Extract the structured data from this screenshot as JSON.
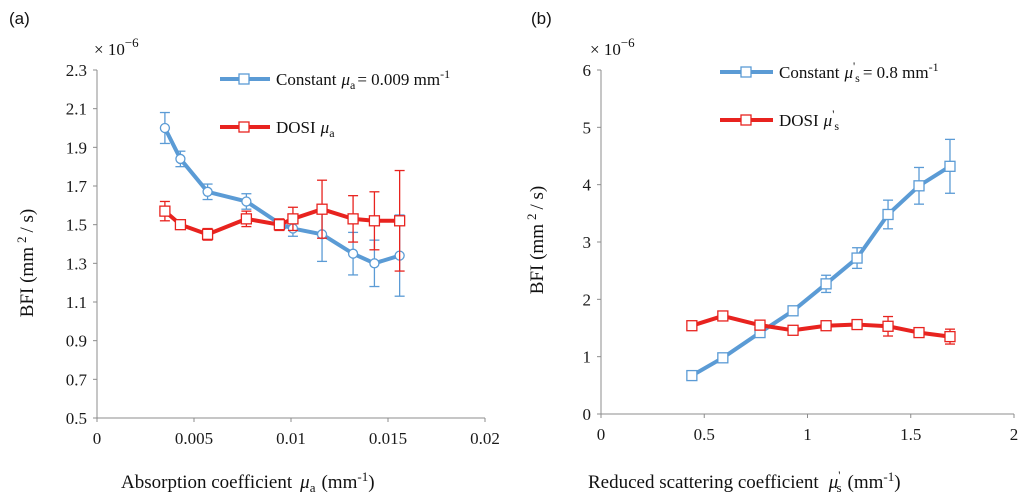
{
  "chart_data": [
    {
      "type": "line",
      "panel_label": "(a)",
      "multiplier": "× 10",
      "multiplier_exp": "−6",
      "xlabel": "Absorption coefficient",
      "xlabel_symbol": "μ",
      "xlabel_sub": "a",
      "xlabel_unit_pre": "(mm",
      "xlabel_unit_sup": "-1",
      "xlabel_unit_post": ")",
      "ylabel_pre": "BFI (mm",
      "ylabel_sup": "2",
      "ylabel_post": "/ s)",
      "xlim": [
        0,
        0.02
      ],
      "ylim": [
        0.5,
        2.3
      ],
      "xticks": [
        0,
        0.005,
        0.01,
        0.015,
        0.02
      ],
      "xtick_labels": [
        "0",
        "0.005",
        "0.01",
        "0.015",
        "0.02"
      ],
      "yticks": [
        0.5,
        0.7,
        0.9,
        1.1,
        1.3,
        1.5,
        1.7,
        1.9,
        2.1,
        2.3
      ],
      "ytick_labels": [
        "0.5",
        "0.7",
        "0.9",
        "1.1",
        "1.3",
        "1.5",
        "1.7",
        "1.9",
        "2.1",
        "2.3"
      ],
      "series": [
        {
          "name_pre": "Constant",
          "name_symbol": "μ",
          "name_sub": "a",
          "name_post": "= 0.009 mm",
          "name_sup": "-1",
          "color": "#5b9bd5",
          "marker": "circle",
          "x": [
            0.0035,
            0.0043,
            0.0057,
            0.0077,
            0.0095,
            0.0101,
            0.0116,
            0.0132,
            0.0143,
            0.0156
          ],
          "y": [
            2.0,
            1.84,
            1.67,
            1.62,
            1.5,
            1.48,
            1.45,
            1.35,
            1.3,
            1.34
          ],
          "err": [
            0.08,
            0.04,
            0.04,
            0.04,
            0.02,
            0.04,
            0.14,
            0.11,
            0.12,
            0.21
          ]
        },
        {
          "name_pre": "DOSI",
          "name_symbol": "μ",
          "name_sub": "a",
          "name_post": "",
          "name_sup": "",
          "color": "#e8231f",
          "marker": "square",
          "x": [
            0.0035,
            0.0043,
            0.0057,
            0.0077,
            0.0094,
            0.0101,
            0.0116,
            0.0132,
            0.0143,
            0.0156
          ],
          "y": [
            1.57,
            1.5,
            1.45,
            1.53,
            1.5,
            1.53,
            1.58,
            1.53,
            1.52,
            1.52
          ],
          "err": [
            0.05,
            0.02,
            0.03,
            0.04,
            0.03,
            0.06,
            0.15,
            0.12,
            0.15,
            0.26
          ]
        }
      ]
    },
    {
      "type": "line",
      "panel_label": "(b)",
      "multiplier": "× 10",
      "multiplier_exp": "−6",
      "xlabel": "Reduced scattering coefficient",
      "xlabel_symbol": "μ",
      "xlabel_sub": "s",
      "xlabel_prime": "'",
      "xlabel_unit_pre": "(mm",
      "xlabel_unit_sup": "-1",
      "xlabel_unit_post": ")",
      "ylabel_pre": "BFI (mm",
      "ylabel_sup": "2",
      "ylabel_post": "/ s)",
      "xlim": [
        0,
        2
      ],
      "ylim": [
        0,
        6
      ],
      "xticks": [
        0,
        0.5,
        1,
        1.5,
        2
      ],
      "xtick_labels": [
        "0",
        "0.5",
        "1",
        "1.5",
        "2"
      ],
      "yticks": [
        0,
        1,
        2,
        3,
        4,
        5,
        6
      ],
      "ytick_labels": [
        "0",
        "1",
        "2",
        "3",
        "4",
        "5",
        "6"
      ],
      "series": [
        {
          "name_pre": "Constant",
          "name_symbol": "μ",
          "name_prime": "'",
          "name_sub": "s",
          "name_post": "= 0.8 mm",
          "name_sup": "-1",
          "color": "#5b9bd5",
          "marker": "square",
          "x": [
            0.44,
            0.59,
            0.77,
            0.93,
            1.09,
            1.24,
            1.39,
            1.54,
            1.69
          ],
          "y": [
            0.67,
            0.98,
            1.42,
            1.8,
            2.27,
            2.72,
            3.48,
            3.98,
            4.32
          ],
          "err": [
            0.05,
            0.06,
            0.07,
            0.08,
            0.15,
            0.18,
            0.25,
            0.32,
            0.47
          ]
        },
        {
          "name_pre": "DOSI",
          "name_symbol": "μ",
          "name_prime": "'",
          "name_sub": "s",
          "name_post": "",
          "name_sup": "",
          "color": "#e8231f",
          "marker": "square",
          "x": [
            0.44,
            0.59,
            0.77,
            0.93,
            1.09,
            1.24,
            1.39,
            1.54,
            1.69
          ],
          "y": [
            1.54,
            1.71,
            1.55,
            1.46,
            1.54,
            1.56,
            1.53,
            1.42,
            1.35
          ],
          "err": [
            0.04,
            0.05,
            0.06,
            0.05,
            0.06,
            0.08,
            0.17,
            0.08,
            0.13
          ]
        }
      ]
    }
  ]
}
